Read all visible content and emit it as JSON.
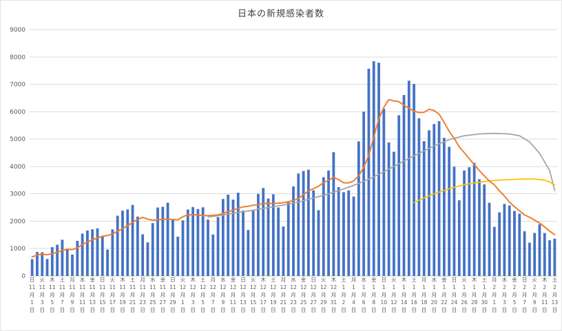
{
  "colors": {
    "bar_blue": "#4472C4",
    "line_orange": "#ED7D31",
    "line_gray": "#A5A5A5",
    "line_yellow": "#FFC000",
    "gridline": "#D9D9D9",
    "axis_line": "#BFBFBF",
    "axis_text": "#595959",
    "title_text": "#404040"
  },
  "chart_data": {
    "type": "bar",
    "title": "日本の新規感染者数",
    "xlabel": "",
    "ylabel": "",
    "ylim": [
      0,
      9000
    ],
    "ytick_interval": 1000,
    "y_tick_labels": [
      "0",
      "1000",
      "2000",
      "3000",
      "4000",
      "5000",
      "6000",
      "7000",
      "8000",
      "9000"
    ],
    "grid": true,
    "legend": false,
    "x_tick_every": 2,
    "x_tick_labels": [
      "日 11月1日",
      "火 11月3日",
      "木 11月5日",
      "土 11月7日",
      "月 11月9日",
      "水 11月11日",
      "金 11月13日",
      "日 11月15日",
      "火 11月17日",
      "木 11月19日",
      "土 11月21日",
      "月 11月23日",
      "水 11月25日",
      "金 11月27日",
      "日 11月29日",
      "火 12月1日",
      "木 12月3日",
      "土 12月5日",
      "月 12月7日",
      "水 12月9日",
      "金 12月11日",
      "日 12月13日",
      "火 12月15日",
      "木 12月17日",
      "土 12月19日",
      "月 12月21日",
      "水 12月23日",
      "金 12月25日",
      "日 12月27日",
      "火 12月29日",
      "木 12月31日",
      "土 1月2日",
      "月 1月4日",
      "水 1月6日",
      "金 1月8日",
      "日 1月10日",
      "火 1月12日",
      "木 1月14日",
      "土 1月16日",
      "月 1月18日",
      "水 1月20日",
      "金 1月22日",
      "日 1月24日",
      "火 1月26日",
      "木 1月28日",
      "土 1月30日",
      "月 2月1日",
      "水 2月3日",
      "金 2月5日",
      "日 2月7日",
      "火 2月9日",
      "木 2月11日",
      "土 2月13日"
    ],
    "series": [
      {
        "name": "daily_new_cases",
        "type": "bar",
        "color": "#4472C4",
        "values": [
          614,
          876,
          867,
          620,
          1050,
          1141,
          1324,
          957,
          780,
          1284,
          1547,
          1661,
          1704,
          1738,
          1441,
          963,
          1699,
          2201,
          2386,
          2427,
          2596,
          2168,
          1520,
          1229,
          1930,
          2499,
          2527,
          2674,
          2059,
          1435,
          2029,
          2427,
          2516,
          2442,
          2508,
          2058,
          1515,
          2152,
          2811,
          2968,
          2788,
          3041,
          2389,
          1680,
          2410,
          2994,
          3211,
          2829,
          2982,
          2501,
          1806,
          2688,
          3271,
          3742,
          3832,
          3881,
          3128,
          2403,
          3610,
          3852,
          4520,
          3246,
          3059,
          3127,
          2899,
          4915,
          6004,
          7570,
          7844,
          7790,
          6106,
          4876,
          4538,
          5870,
          6609,
          7133,
          7014,
          5759,
          4925,
          5320,
          5549,
          5653,
          5045,
          4717,
          3990,
          2764,
          3853,
          3971,
          4133,
          3534,
          3344,
          2673,
          1792,
          2324,
          2631,
          2576,
          2372,
          2277,
          1632,
          1216,
          1570,
          1887,
          1568,
          1304,
          1362
        ]
      },
      {
        "name": "moving_average_7day",
        "type": "line",
        "color": "#ED7D31",
        "values": [
          695,
          761,
          793,
          777,
          812,
          864,
          927,
          976,
          963,
          1022,
          1155,
          1242,
          1322,
          1382,
          1451,
          1477,
          1536,
          1630,
          1733,
          1836,
          1959,
          2063,
          2142,
          2075,
          2037,
          2053,
          2067,
          2078,
          2063,
          2050,
          2165,
          2236,
          2238,
          2226,
          2202,
          2202,
          2214,
          2231,
          2286,
          2351,
          2400,
          2476,
          2523,
          2547,
          2584,
          2610,
          2645,
          2651,
          2642,
          2658,
          2676,
          2716,
          2755,
          2831,
          2975,
          3103,
          3193,
          3278,
          3410,
          3493,
          3604,
          3520,
          3403,
          3402,
          3473,
          3660,
          3967,
          4403,
          5060,
          5736,
          6161,
          6444,
          6390,
          6371,
          6233,
          6132,
          6021,
          5971,
          5978,
          6090,
          6044,
          5908,
          5609,
          5281,
          5028,
          4720,
          4510,
          4285,
          4068,
          3852,
          3656,
          3467,
          3329,
          3110,
          2919,
          2696,
          2530,
          2378,
          2229,
          2147,
          2039,
          1933,
          1789,
          1636,
          1506
        ]
      },
      {
        "name": "trend_gray",
        "type": "line",
        "color": "#A5A5A5",
        "points": [
          [
            35,
            2150
          ],
          [
            38,
            2230
          ],
          [
            41,
            2320
          ],
          [
            44,
            2400
          ],
          [
            47,
            2500
          ],
          [
            50,
            2590
          ],
          [
            53,
            2700
          ],
          [
            56,
            2850
          ],
          [
            59,
            3000
          ],
          [
            62,
            3180
          ],
          [
            65,
            3380
          ],
          [
            68,
            3620
          ],
          [
            71,
            3900
          ],
          [
            74,
            4200
          ],
          [
            77,
            4480
          ],
          [
            80,
            4750
          ],
          [
            83,
            4980
          ],
          [
            86,
            5120
          ],
          [
            89,
            5190
          ],
          [
            92,
            5210
          ],
          [
            95,
            5190
          ],
          [
            97,
            5120
          ],
          [
            99,
            4900
          ],
          [
            101,
            4480
          ],
          [
            103,
            3850
          ],
          [
            104,
            3120
          ]
        ]
      },
      {
        "name": "trend_yellow",
        "type": "line",
        "color": "#FFC000",
        "points": [
          [
            76,
            2680
          ],
          [
            78,
            2850
          ],
          [
            80,
            3000
          ],
          [
            82,
            3130
          ],
          [
            84,
            3240
          ],
          [
            86,
            3330
          ],
          [
            88,
            3400
          ],
          [
            90,
            3450
          ],
          [
            92,
            3490
          ],
          [
            94,
            3510
          ],
          [
            96,
            3530
          ],
          [
            98,
            3540
          ],
          [
            100,
            3540
          ],
          [
            102,
            3500
          ],
          [
            103,
            3430
          ],
          [
            104,
            3330
          ]
        ]
      }
    ]
  }
}
